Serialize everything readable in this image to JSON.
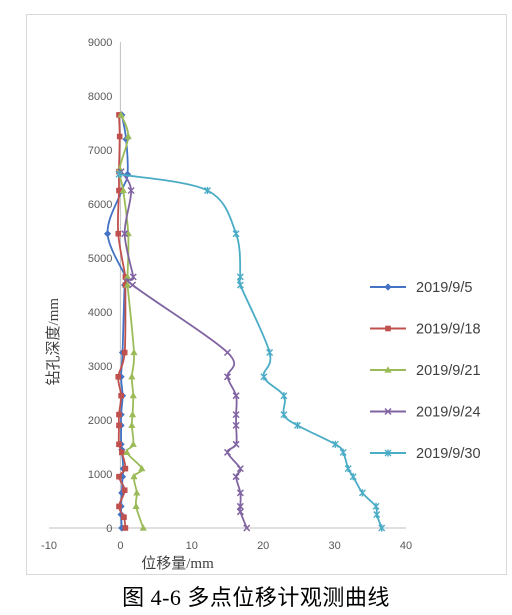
{
  "caption": "图 4-6  多点位移计观测曲线",
  "chart_data": {
    "type": "scatter",
    "title": "",
    "xlabel": "位移量/mm",
    "ylabel": "钻孔深度/mm",
    "xlim": [
      -10,
      40
    ],
    "ylim": [
      0,
      9000
    ],
    "x_ticks": [
      "-10",
      "0",
      "10",
      "20",
      "30",
      "40"
    ],
    "y_ticks": [
      "0",
      "1000",
      "2000",
      "3000",
      "4000",
      "5000",
      "6000",
      "7000",
      "8000",
      "9000"
    ],
    "grid": false,
    "legend_position": "right",
    "series": [
      {
        "name": "2019/9/5",
        "color": "#4472C4",
        "marker": "diamond",
        "points": [
          [
            0.2,
            0
          ],
          [
            0.1,
            250
          ],
          [
            0.1,
            400
          ],
          [
            0.2,
            650
          ],
          [
            0.3,
            950
          ],
          [
            0.4,
            1100
          ],
          [
            0.2,
            1450
          ],
          [
            0.1,
            1550
          ],
          [
            0.1,
            1900
          ],
          [
            0.1,
            2100
          ],
          [
            0.3,
            2450
          ],
          [
            0.1,
            2800
          ],
          [
            0.3,
            3250
          ],
          [
            0.6,
            4500
          ],
          [
            0.9,
            4600
          ],
          [
            -1.8,
            5450
          ],
          [
            0.2,
            6250
          ],
          [
            1.0,
            6550
          ],
          [
            0.8,
            7200
          ],
          [
            0.2,
            7650
          ]
        ]
      },
      {
        "name": "2019/9/18",
        "color": "#C0504D",
        "marker": "square",
        "points": [
          [
            0.7,
            0
          ],
          [
            0.5,
            200
          ],
          [
            -0.2,
            400
          ],
          [
            0.6,
            700
          ],
          [
            -0.2,
            950
          ],
          [
            0.7,
            1100
          ],
          [
            0.2,
            1400
          ],
          [
            -0.2,
            1550
          ],
          [
            -0.2,
            1900
          ],
          [
            -0.2,
            2100
          ],
          [
            0.1,
            2450
          ],
          [
            -0.3,
            2800
          ],
          [
            0.6,
            3250
          ],
          [
            0.7,
            4500
          ],
          [
            0.7,
            4650
          ],
          [
            -0.3,
            5450
          ],
          [
            -0.2,
            6250
          ],
          [
            -0.2,
            6600
          ],
          [
            -0.1,
            7250
          ],
          [
            -0.2,
            7650
          ]
        ]
      },
      {
        "name": "2019/9/21",
        "color": "#9BBB59",
        "marker": "triangle",
        "points": [
          [
            3.2,
            0
          ],
          [
            2.2,
            400
          ],
          [
            2.3,
            650
          ],
          [
            1.9,
            950
          ],
          [
            3.0,
            1100
          ],
          [
            0.9,
            1400
          ],
          [
            1.8,
            1550
          ],
          [
            1.6,
            1900
          ],
          [
            1.7,
            2100
          ],
          [
            1.8,
            2450
          ],
          [
            1.6,
            2800
          ],
          [
            1.9,
            3250
          ],
          [
            1.0,
            4500
          ],
          [
            1.0,
            4650
          ],
          [
            1.1,
            5450
          ],
          [
            0.4,
            6250
          ],
          [
            -0.1,
            6650
          ],
          [
            1.1,
            7250
          ],
          [
            0.1,
            7650
          ]
        ]
      },
      {
        "name": "2019/9/24",
        "color": "#8064A2",
        "marker": "x",
        "points": [
          [
            17.7,
            0
          ],
          [
            16.8,
            300
          ],
          [
            16.8,
            400
          ],
          [
            16.8,
            650
          ],
          [
            16.2,
            950
          ],
          [
            16.8,
            1100
          ],
          [
            15.0,
            1400
          ],
          [
            16.2,
            1550
          ],
          [
            16.2,
            1900
          ],
          [
            16.2,
            2100
          ],
          [
            16.2,
            2450
          ],
          [
            15.0,
            2800
          ],
          [
            15.0,
            3250
          ],
          [
            1.7,
            4500
          ],
          [
            1.8,
            4650
          ],
          [
            0.6,
            5450
          ],
          [
            1.5,
            6250
          ],
          [
            0.1,
            6600
          ]
        ]
      },
      {
        "name": "2019/9/30",
        "color": "#4BACC6",
        "marker": "star",
        "points": [
          [
            36.6,
            0
          ],
          [
            35.9,
            250
          ],
          [
            35.8,
            400
          ],
          [
            33.9,
            650
          ],
          [
            32.6,
            950
          ],
          [
            31.9,
            1100
          ],
          [
            31.2,
            1400
          ],
          [
            30.1,
            1550
          ],
          [
            24.8,
            1900
          ],
          [
            22.9,
            2100
          ],
          [
            22.9,
            2450
          ],
          [
            20.1,
            2800
          ],
          [
            20.9,
            3250
          ],
          [
            16.8,
            4500
          ],
          [
            16.8,
            4650
          ],
          [
            16.2,
            5450
          ],
          [
            12.2,
            6250
          ],
          [
            -0.2,
            6550
          ]
        ]
      }
    ]
  }
}
